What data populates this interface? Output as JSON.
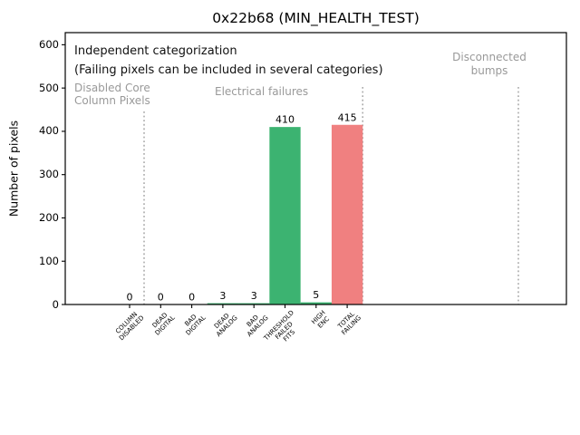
{
  "chart_data": {
    "type": "bar",
    "title": "0x22b68 (MIN_HEALTH_TEST)",
    "ylabel": "Number of pixels",
    "ylim": [
      0,
      628
    ],
    "yticks": [
      0,
      100,
      200,
      300,
      400,
      500,
      600
    ],
    "categories": [
      "COLUMN DISABLED",
      "DEAD DIGITAL",
      "BAD DIGITAL",
      "DEAD ANALOG",
      "BAD ANALOG",
      "THRESHOLD FAILED FITS",
      "HIGH ENC",
      "TOTAL FAILING"
    ],
    "category_lines": [
      [
        "COLUMN",
        "DISABLED"
      ],
      [
        "DEAD",
        "DIGITAL"
      ],
      [
        "BAD",
        "DIGITAL"
      ],
      [
        "DEAD",
        "ANALOG"
      ],
      [
        "BAD",
        "ANALOG"
      ],
      [
        "THRESHOLD",
        "FAILED",
        "FITS"
      ],
      [
        "HIGH",
        "ENC"
      ],
      [
        "TOTAL",
        "FAILING"
      ]
    ],
    "values": [
      0,
      0,
      0,
      3,
      3,
      410,
      5,
      415
    ],
    "bar_colors": [
      "#3cb371",
      "#3cb371",
      "#3cb371",
      "#3cb371",
      "#3cb371",
      "#3cb371",
      "#3cb371",
      "#f08080"
    ],
    "annotation": {
      "line1": "Independent categorization",
      "line2": "(Failing pixels can be included in several categories)"
    },
    "sections": [
      {
        "lines": [
          "Disabled Core",
          "Column Pixels"
        ]
      },
      {
        "lines": [
          "Electrical failures"
        ]
      },
      {
        "lines": [
          "Disconnected",
          "bumps"
        ]
      }
    ],
    "colors": {
      "bar_green": "#3cb371",
      "bar_red": "#f08080",
      "section_text": "#999999",
      "divider": "#9e9e9e",
      "axis": "#000000"
    },
    "legend": "none",
    "grid": "off"
  }
}
